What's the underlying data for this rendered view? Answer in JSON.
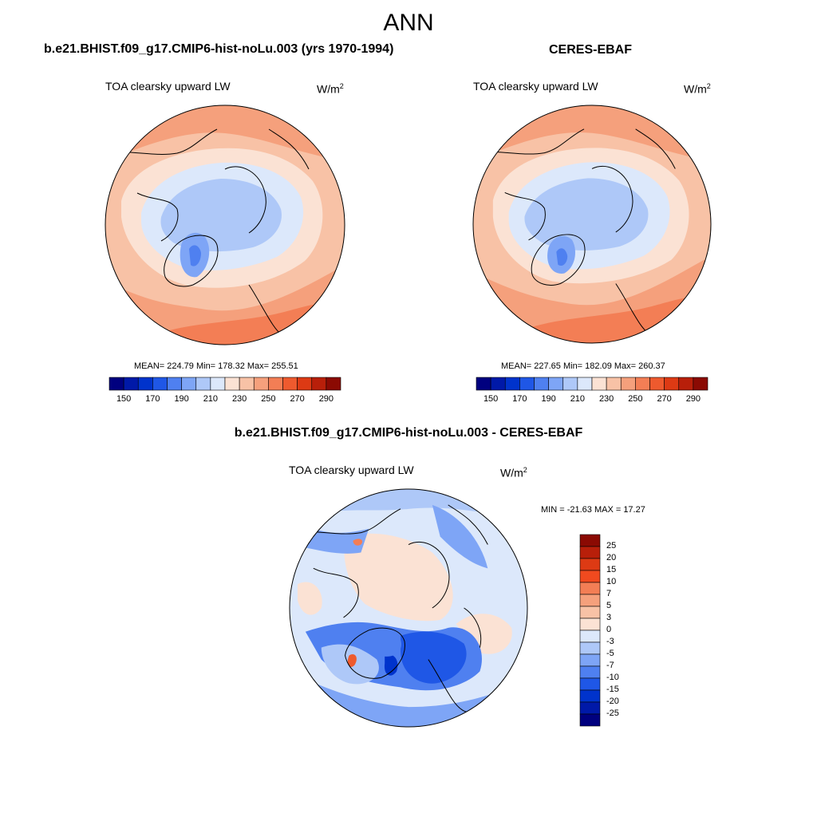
{
  "title": "ANN",
  "panels": {
    "test": {
      "title": "b.e21.BHIST.f09_g17.CMIP6-hist-noLu.003 (yrs 1970-1994)",
      "variable": "TOA clearsky upward LW",
      "units_base": "W/m",
      "units_exp": "2",
      "stats": "MEAN= 224.79  Min= 178.32  Max= 255.51"
    },
    "reference": {
      "title": "CERES-EBAF",
      "variable": "TOA clearsky upward LW",
      "units_base": "W/m",
      "units_exp": "2",
      "stats": "MEAN= 227.65  Min= 182.09  Max= 260.37"
    },
    "difference": {
      "title": "b.e21.BHIST.f09_g17.CMIP6-hist-noLu.003 - CERES-EBAF",
      "variable": "TOA clearsky upward LW",
      "units_base": "W/m",
      "units_exp": "2",
      "stats": "MIN = -21.63 MAX =  17.27"
    }
  },
  "colorbar_main": {
    "tick_labels": [
      "150",
      "170",
      "190",
      "210",
      "230",
      "250",
      "270",
      "290"
    ],
    "colors": [
      "#00007f",
      "#0019a8",
      "#0033cc",
      "#1f57e6",
      "#4f80f0",
      "#7ea5f6",
      "#aec8f8",
      "#dce8fb",
      "#fbe2d4",
      "#f8c2a6",
      "#f5a07c",
      "#f37e55",
      "#ee5a2e",
      "#dd3a14",
      "#b81f0a",
      "#8b0a03"
    ]
  },
  "colorbar_diff": {
    "tick_labels": [
      "25",
      "20",
      "15",
      "10",
      "7",
      "5",
      "3",
      "0",
      "-3",
      "-5",
      "-7",
      "-10",
      "-15",
      "-20",
      "-25"
    ],
    "colors": [
      "#8b0a03",
      "#b81f0a",
      "#dd3a14",
      "#f04a1f",
      "#f37e55",
      "#f5a07c",
      "#f8c2a6",
      "#fbe2d4",
      "#dce8fb",
      "#aec8f8",
      "#7ea5f6",
      "#4f80f0",
      "#1f57e6",
      "#0033cc",
      "#0019a8",
      "#00007f"
    ]
  }
}
